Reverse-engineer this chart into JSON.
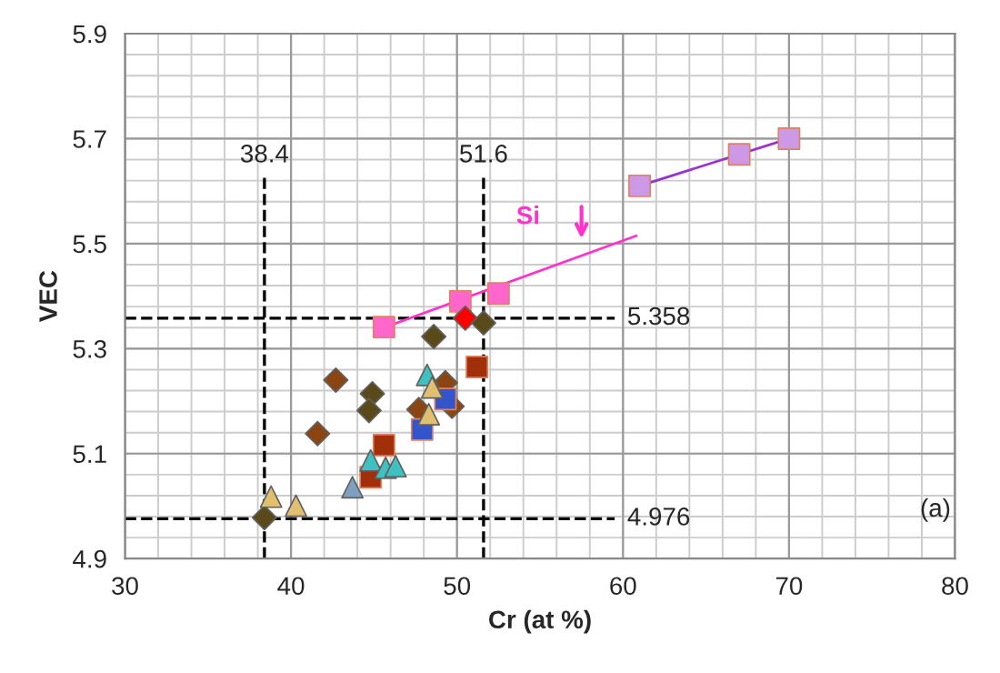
{
  "chart_data": {
    "type": "scatter",
    "xlabel": "Cr (at %)",
    "ylabel": "VEC",
    "xlim": [
      30,
      80
    ],
    "xticks": [
      30,
      40,
      50,
      60,
      70,
      80
    ],
    "ylim": [
      4.9,
      5.9
    ],
    "yticks": [
      4.9,
      5.1,
      5.3,
      5.5,
      5.7,
      5.9
    ],
    "grid": true,
    "series": [
      {
        "type": "line",
        "color": "#ff33cc",
        "marker": "none",
        "x": [
          45.6,
          60.8
        ],
        "values": [
          5.34,
          5.515
        ]
      },
      {
        "type": "line",
        "color": "#9933cc",
        "marker": "none",
        "x": [
          61,
          70
        ],
        "values": [
          5.61,
          5.7
        ]
      },
      {
        "color": "#cc99e6",
        "marker": "square",
        "x": [
          61,
          67,
          70
        ],
        "values": [
          5.61,
          5.67,
          5.7
        ]
      },
      {
        "color": "#ff66cc",
        "marker": "square",
        "x": [
          45.6,
          50.2,
          52.5
        ],
        "values": [
          5.341,
          5.39,
          5.405
        ]
      },
      {
        "color": "#ff0000",
        "marker": "diamond",
        "x": [
          50.5
        ],
        "values": [
          5.358
        ]
      },
      {
        "color": "#5a4a1a",
        "marker": "diamond",
        "x": [
          51.6,
          48.6,
          44.9,
          44.7,
          38.4
        ],
        "values": [
          5.349,
          5.323,
          5.214,
          5.182,
          4.978
        ]
      },
      {
        "color": "#8b4513",
        "marker": "diamond",
        "x": [
          42.7,
          41.6,
          49.3,
          47.7,
          49.7
        ],
        "values": [
          5.24,
          5.138,
          5.235,
          5.184,
          5.19
        ]
      },
      {
        "color": "#a0300a",
        "marker": "square",
        "x": [
          51.2,
          45.6,
          44.8
        ],
        "values": [
          5.265,
          5.116,
          5.055
        ]
      },
      {
        "color": "#3355cc",
        "marker": "square",
        "x": [
          47.9,
          49.3
        ],
        "values": [
          5.146,
          5.204
        ]
      },
      {
        "color": "#40c0c0",
        "marker": "triangle",
        "x": [
          48.2,
          44.8,
          45.7,
          46.3
        ],
        "values": [
          5.25,
          5.087,
          5.073,
          5.076
        ]
      },
      {
        "color": "#7f9fbf",
        "marker": "triangle",
        "x": [
          43.7
        ],
        "values": [
          5.036
        ]
      },
      {
        "color": "#e0c070",
        "marker": "triangle",
        "x": [
          38.8,
          40.3,
          48.5,
          48.3
        ],
        "values": [
          5.018,
          5.001,
          5.226,
          5.175
        ]
      }
    ],
    "ref_lines": [
      {
        "axis": "x",
        "value": 38.4,
        "label": "38.4",
        "line_style": "dashed",
        "color": "#000000"
      },
      {
        "axis": "x",
        "value": 51.6,
        "label": "51.6",
        "line_style": "dashed",
        "color": "#000000"
      },
      {
        "axis": "y",
        "value": 5.358,
        "label": "5.358",
        "line_style": "dashed",
        "color": "#000000"
      },
      {
        "axis": "y",
        "value": 4.976,
        "label": "4.976",
        "line_style": "dashed",
        "color": "#000000"
      }
    ],
    "annotations": [
      "Si",
      "(a)"
    ]
  }
}
